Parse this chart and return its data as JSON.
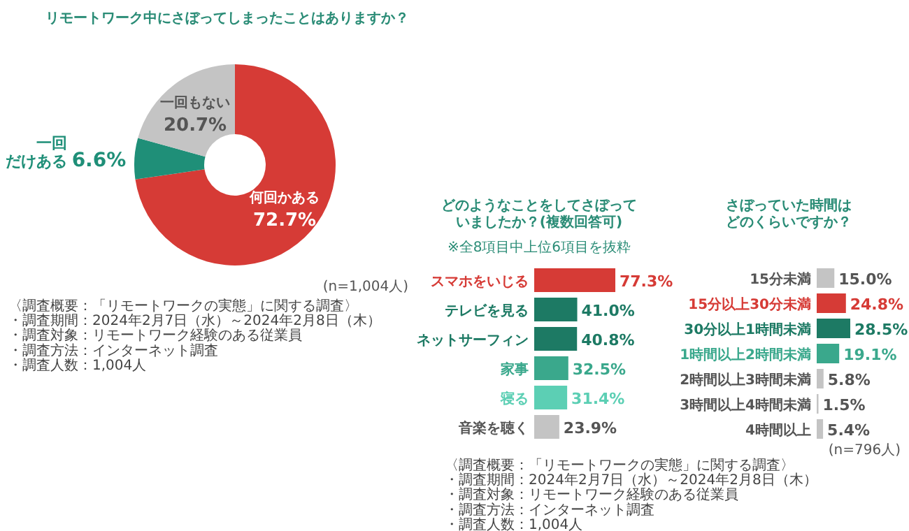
{
  "chart_data": [
    {
      "type": "donut",
      "title": "リモートワーク中にさぼってしまったことはありますか？",
      "categories": [
        "何回かある",
        "一回だけある",
        "一回もない"
      ],
      "values": [
        72.7,
        6.6,
        20.7
      ],
      "colors": [
        "#d63b36",
        "#1f8f78",
        "#c4c4c4"
      ],
      "value_labels": [
        "72.7%",
        "6.6%",
        "20.7%"
      ],
      "annotations": [
        "(n=1,004人)",
        "〈調査概要：「リモートワークの実態」に関する調査〉",
        "・調査期間：2024年2月7日（水）～2024年2月8日（木）",
        "・調査対象：リモートワーク経験のある従業員",
        "・調査方法：インターネット調査",
        "・調査人数：1,004人"
      ]
    },
    {
      "type": "bar",
      "orientation": "horizontal",
      "title": "どのようなことをしてさぼっていましたか？(複数回答可)",
      "subtitle": "※全8項目中上位6項目を抜粋",
      "categories": [
        "スマホをいじる",
        "テレビを見る",
        "ネットサーフィン",
        "家事",
        "寝る",
        "音楽を聴く"
      ],
      "values": [
        77.3,
        41.0,
        40.8,
        32.5,
        31.4,
        23.9
      ],
      "colors": [
        "#d63b36",
        "#1d7a64",
        "#1d7a64",
        "#3aa88c",
        "#5ccfb4",
        "#c4c4c4"
      ],
      "value_labels": [
        "77.3%",
        "41.0%",
        "40.8%",
        "32.5%",
        "31.4%",
        "23.9%"
      ]
    },
    {
      "type": "bar",
      "orientation": "horizontal",
      "title": "さぼっていた時間はどのくらいですか？",
      "categories": [
        "15分未満",
        "15分以上30分未満",
        "30分以上1時間未満",
        "1時間以上2時間未満",
        "2時間以上3時間未満",
        "3時間以上4時間未満",
        "4時間以上"
      ],
      "values": [
        15.0,
        24.8,
        28.5,
        19.1,
        5.8,
        1.5,
        5.4
      ],
      "colors": [
        "#c4c4c4",
        "#d63b36",
        "#1d7a64",
        "#3aa88c",
        "#c4c4c4",
        "#c4c4c4",
        "#c4c4c4"
      ],
      "value_labels": [
        "15.0%",
        "24.8%",
        "28.5%",
        "19.1%",
        "5.8%",
        "1.5%",
        "5.4%"
      ],
      "annotations": [
        "(n=796人)",
        "〈調査概要：「リモートワークの実態」に関する調査〉",
        "・調査期間：2024年2月7日（水）～2024年2月8日（木）",
        "・調査対象：リモートワーク経験のある従業員",
        "・調査方法：インターネット調査",
        "・調査人数：1,004人"
      ]
    }
  ]
}
